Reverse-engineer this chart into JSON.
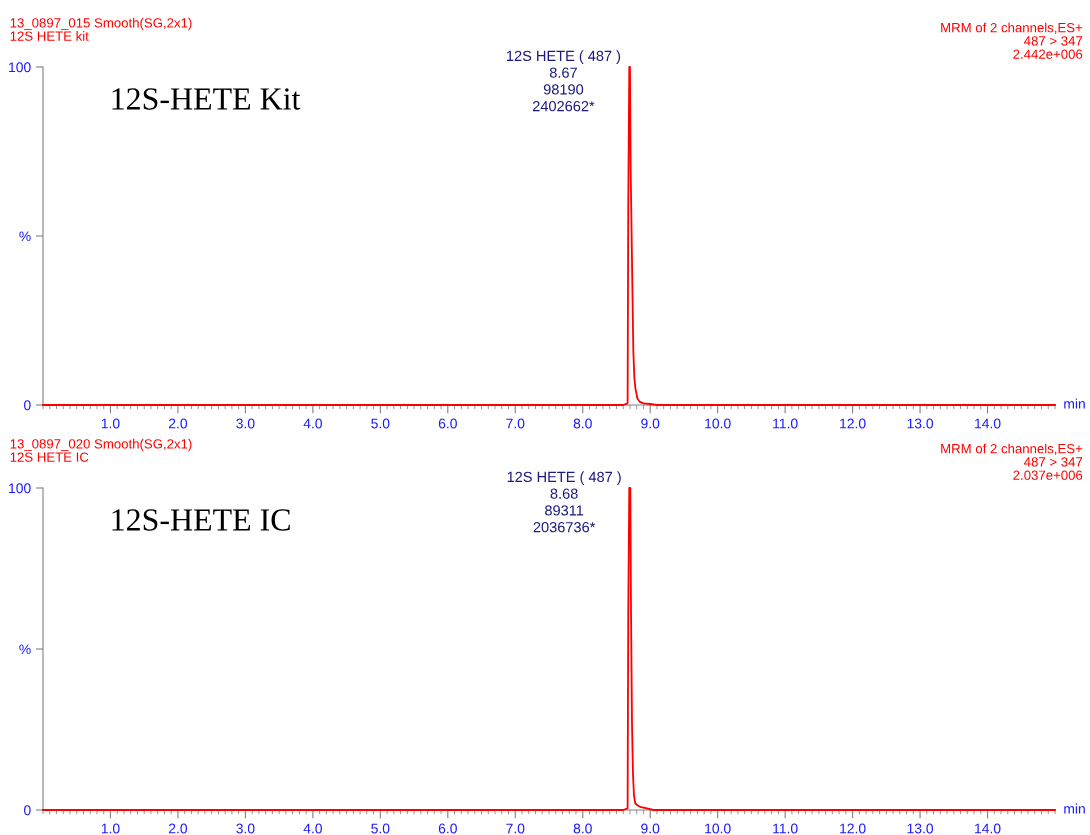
{
  "chart_data": [
    {
      "type": "line",
      "title": "12S-HETE Kit",
      "subtitle": "13_0897_015 Smooth(SG,2x1)\n12S HETE kit",
      "xlabel": "min",
      "annotations": [
        "MRM of 2 channels,ES+\n487 > 347\n2.442e+006",
        {
          "text": "12S HETE ( 487 )\n8.67\n98190\n2402662*",
          "x": 8.67,
          "y": 100
        }
      ],
      "series": [
        {
          "color": "#ff0000",
          "x": [
            0,
            8.6,
            8.665,
            8.675,
            8.69,
            8.7,
            8.71,
            8.72,
            8.735,
            8.75,
            8.765,
            8.78,
            8.81,
            8.84,
            8.9,
            9.0,
            9.1,
            15
          ],
          "values": [
            0,
            0,
            0.5,
            60,
            100,
            100,
            70,
            57,
            36,
            16,
            8,
            5,
            2,
            1,
            0.5,
            0.3,
            0,
            0
          ]
        }
      ],
      "xlim": [
        0,
        15
      ],
      "ylim": [
        0,
        100
      ],
      "xticks": [
        {
          "value": 1,
          "label": "1.0"
        },
        {
          "value": 2,
          "label": "2.0"
        },
        {
          "value": 3,
          "label": "3.0"
        },
        {
          "value": 4,
          "label": "4.0"
        },
        {
          "value": 5,
          "label": "5.0"
        },
        {
          "value": 6,
          "label": "6.0"
        },
        {
          "value": 7,
          "label": "7.0"
        },
        {
          "value": 8,
          "label": "8.0"
        },
        {
          "value": 9,
          "label": "9.0"
        },
        {
          "value": 10,
          "label": "10.0"
        },
        {
          "value": 11,
          "label": "11.0"
        },
        {
          "value": 12,
          "label": "12.0"
        },
        {
          "value": 13,
          "label": "13.0"
        },
        {
          "value": 14,
          "label": "14.0"
        }
      ],
      "yticks": [
        0,
        {
          "value": 50,
          "label": "%"
        },
        100
      ],
      "grid": false,
      "legend": false,
      "marker": "none",
      "line_style": "solid"
    },
    {
      "type": "line",
      "title": "12S-HETE IC",
      "subtitle": "13_0897_020 Smooth(SG,2x1)\n12S HETE IC",
      "xlabel": "min",
      "annotations": [
        "MRM of 2 channels,ES+\n487 > 347\n2.037e+006",
        {
          "text": "12S HETE ( 487 )\n8.68\n89311\n2036736*",
          "x": 8.68,
          "y": 100
        }
      ],
      "series": [
        {
          "color": "#ff0000",
          "x": [
            0,
            8.6,
            8.665,
            8.675,
            8.69,
            8.705,
            8.715,
            8.73,
            8.745,
            8.76,
            8.78,
            8.81,
            8.85,
            8.95,
            9.05,
            15
          ],
          "values": [
            0,
            0,
            0.5,
            62,
            100,
            100,
            64,
            27,
            11,
            4.4,
            2,
            1.5,
            1,
            0.5,
            0,
            0
          ]
        }
      ],
      "xlim": [
        0,
        15
      ],
      "ylim": [
        0,
        100
      ],
      "xticks": [
        {
          "value": 1,
          "label": "1.0"
        },
        {
          "value": 2,
          "label": "2.0"
        },
        {
          "value": 3,
          "label": "3.0"
        },
        {
          "value": 4,
          "label": "4.0"
        },
        {
          "value": 5,
          "label": "5.0"
        },
        {
          "value": 6,
          "label": "6.0"
        },
        {
          "value": 7,
          "label": "7.0"
        },
        {
          "value": 8,
          "label": "8.0"
        },
        {
          "value": 9,
          "label": "9.0"
        },
        {
          "value": 10,
          "label": "10.0"
        },
        {
          "value": 11,
          "label": "11.0"
        },
        {
          "value": 12,
          "label": "12.0"
        },
        {
          "value": 13,
          "label": "13.0"
        },
        {
          "value": 14,
          "label": "14.0"
        }
      ],
      "yticks": [
        0,
        {
          "value": 50,
          "label": "%"
        },
        100
      ],
      "grid": false,
      "legend": false,
      "marker": "none",
      "line_style": "solid"
    }
  ]
}
